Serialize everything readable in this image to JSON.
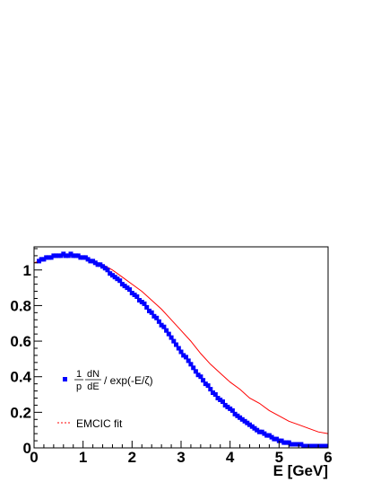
{
  "chart_data": {
    "type": "scatter",
    "title": "",
    "xlabel": "E [GeV]",
    "ylabel": "",
    "xlim": [
      0,
      6
    ],
    "ylim": [
      0,
      1.13
    ],
    "x_ticks": [
      "0",
      "1",
      "2",
      "3",
      "4",
      "5",
      "6"
    ],
    "y_ticks": [
      "0",
      "0.2",
      "0.4",
      "0.6",
      "0.8",
      "1"
    ],
    "colors": {
      "data": "#0000ff",
      "fit": "#ff0000",
      "axis": "#000000"
    },
    "legend": {
      "placement": "lower-left",
      "data_label": {
        "frac1_num": "1",
        "frac1_den": "p",
        "frac2_num": "dN",
        "frac2_den": "dE",
        "suffix": "/ exp(-E/ζ)"
      },
      "fit_label": "EMCIC fit"
    },
    "series": [
      {
        "kind": "markers",
        "x": [
          0.1,
          0.15,
          0.2,
          0.25,
          0.3,
          0.35,
          0.4,
          0.45,
          0.5,
          0.55,
          0.6,
          0.65,
          0.7,
          0.75,
          0.8,
          0.85,
          0.9,
          0.95,
          1.0,
          1.05,
          1.1,
          1.15,
          1.2,
          1.25,
          1.3,
          1.35,
          1.4,
          1.45,
          1.5,
          1.55,
          1.6,
          1.65,
          1.7,
          1.75,
          1.8,
          1.85,
          1.9,
          1.95,
          2.0,
          2.05,
          2.1,
          2.15,
          2.2,
          2.25,
          2.3,
          2.35,
          2.4,
          2.45,
          2.5,
          2.55,
          2.6,
          2.65,
          2.7,
          2.75,
          2.8,
          2.85,
          2.9,
          2.95,
          3.0,
          3.05,
          3.1,
          3.15,
          3.2,
          3.25,
          3.3,
          3.35,
          3.4,
          3.45,
          3.5,
          3.55,
          3.6,
          3.65,
          3.7,
          3.75,
          3.8,
          3.85,
          3.9,
          3.95,
          4.0,
          4.05,
          4.1,
          4.15,
          4.2,
          4.25,
          4.3,
          4.35,
          4.4,
          4.45,
          4.5,
          4.55,
          4.6,
          4.65,
          4.7,
          4.75,
          4.8,
          4.85,
          4.9,
          4.95,
          5.0,
          5.05,
          5.1,
          5.15,
          5.2,
          5.25,
          5.3,
          5.35,
          5.4,
          5.45,
          5.5,
          5.55,
          5.6,
          5.65,
          5.7,
          5.75,
          5.8,
          5.85,
          5.9,
          5.95
        ],
        "y": [
          1.05,
          1.06,
          1.06,
          1.07,
          1.07,
          1.07,
          1.08,
          1.08,
          1.08,
          1.08,
          1.09,
          1.08,
          1.08,
          1.09,
          1.08,
          1.08,
          1.08,
          1.07,
          1.07,
          1.07,
          1.06,
          1.05,
          1.05,
          1.04,
          1.03,
          1.03,
          1.02,
          1.01,
          1.0,
          0.98,
          0.97,
          0.96,
          0.95,
          0.94,
          0.92,
          0.91,
          0.9,
          0.89,
          0.87,
          0.86,
          0.85,
          0.83,
          0.82,
          0.81,
          0.79,
          0.77,
          0.76,
          0.74,
          0.73,
          0.71,
          0.69,
          0.68,
          0.66,
          0.64,
          0.62,
          0.6,
          0.58,
          0.56,
          0.54,
          0.52,
          0.51,
          0.49,
          0.47,
          0.45,
          0.43,
          0.41,
          0.4,
          0.38,
          0.36,
          0.35,
          0.33,
          0.31,
          0.3,
          0.28,
          0.27,
          0.26,
          0.24,
          0.23,
          0.22,
          0.21,
          0.19,
          0.18,
          0.17,
          0.16,
          0.15,
          0.14,
          0.13,
          0.12,
          0.11,
          0.1,
          0.09,
          0.09,
          0.08,
          0.07,
          0.07,
          0.06,
          0.05,
          0.05,
          0.04,
          0.04,
          0.03,
          0.03,
          0.03,
          0.02,
          0.02,
          0.02,
          0.02,
          0.02,
          0.01,
          0.01,
          0.01,
          0.01,
          0.01,
          0.01,
          0.01,
          0.01,
          0.01,
          0.01
        ]
      },
      {
        "kind": "line",
        "x": [
          0.0,
          0.2,
          0.4,
          0.6,
          0.8,
          1.0,
          1.2,
          1.4,
          1.6,
          1.8,
          2.0,
          2.2,
          2.4,
          2.6,
          2.8,
          3.0,
          3.2,
          3.4,
          3.6,
          3.8,
          4.0,
          4.2,
          4.4,
          4.6,
          4.8,
          5.0,
          5.2,
          5.4,
          5.6,
          5.8,
          6.0
        ],
        "y": [
          1.04,
          1.06,
          1.07,
          1.08,
          1.08,
          1.07,
          1.05,
          1.03,
          1.0,
          0.96,
          0.92,
          0.88,
          0.83,
          0.78,
          0.72,
          0.66,
          0.6,
          0.53,
          0.47,
          0.42,
          0.37,
          0.33,
          0.28,
          0.25,
          0.21,
          0.18,
          0.15,
          0.13,
          0.11,
          0.09,
          0.08
        ]
      }
    ]
  }
}
